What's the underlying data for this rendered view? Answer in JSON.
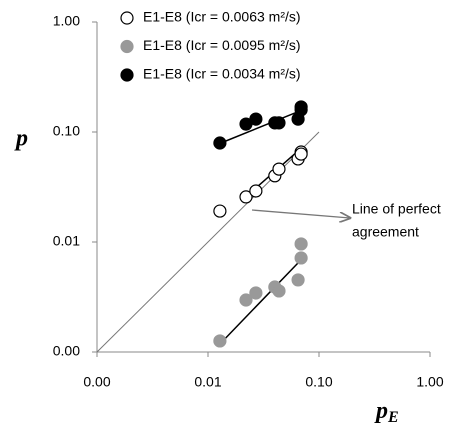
{
  "chart_data": {
    "type": "scatter",
    "x_label": "p",
    "x_label_sub": "E",
    "y_label": "p",
    "log_x": true,
    "log_y": true,
    "xlim": [
      0.001,
      1
    ],
    "ylim": [
      0.001,
      1
    ],
    "xticks": [
      {
        "value": 0.001,
        "label": "0.00"
      },
      {
        "value": 0.01,
        "label": "0.01"
      },
      {
        "value": 0.1,
        "label": "0.10"
      },
      {
        "value": 1,
        "label": "1.00"
      }
    ],
    "yticks": [
      {
        "value": 0.001,
        "label": "0.00"
      },
      {
        "value": 0.01,
        "label": "0.01"
      },
      {
        "value": 0.1,
        "label": "0.10"
      },
      {
        "value": 1,
        "label": "1.00"
      }
    ],
    "series": [
      {
        "name": "E1-E8 (Icr = 0.0063 m²/s)",
        "color": "#ffffff",
        "x": [
          0.0128,
          0.022,
          0.027,
          0.04,
          0.0436,
          0.0648,
          0.069,
          0.069
        ],
        "values": [
          0.0191,
          0.0257,
          0.0291,
          0.04,
          0.046,
          0.0569,
          0.0658,
          0.063
        ],
        "trend_x": [
          0.026,
          0.07
        ],
        "trend_y": [
          0.03,
          0.072
        ]
      },
      {
        "name": "E1-E8 (Icr = 0.0095 m²/s)",
        "color": "#999999",
        "x": [
          0.0128,
          0.022,
          0.027,
          0.04,
          0.0436,
          0.0648,
          0.069,
          0.069
        ],
        "values": [
          0.00126,
          0.00297,
          0.00344,
          0.0039,
          0.00359,
          0.00452,
          0.0096,
          0.00716
        ],
        "trend_x": [
          0.0132,
          0.069
        ],
        "trend_y": [
          0.00122,
          0.0069
        ]
      },
      {
        "name": "E1-E8 (Icr = 0.0034 m²/s)",
        "color": "#000000",
        "x": [
          0.0128,
          0.022,
          0.027,
          0.04,
          0.0436,
          0.0648,
          0.069,
          0.069
        ],
        "values": [
          0.0794,
          0.118,
          0.131,
          0.121,
          0.121,
          0.131,
          0.169,
          0.159
        ],
        "trend_x": [
          0.0125,
          0.07
        ],
        "trend_y": [
          0.078,
          0.158
        ]
      }
    ],
    "reference_line": {
      "x": [
        0.001,
        0.1
      ],
      "y": [
        0.001,
        0.1
      ]
    },
    "annotation": [
      "Line of perfect",
      "agreement"
    ]
  }
}
